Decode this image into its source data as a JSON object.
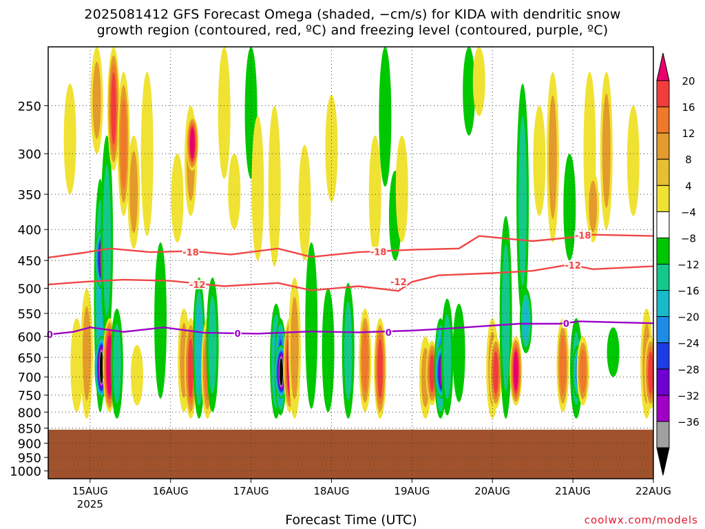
{
  "title_lines": [
    "2025081412 GFS Forecast Omega (shaded, −cm/s) for KIDA with dendritic snow",
    "growth region (contoured, red, ºC) and freezing level (contoured, purple, ºC)"
  ],
  "credit": "coolwx.com/models",
  "chart_data": {
    "type": "heatmap",
    "title": "2025081412 GFS Forecast Omega (shaded, −cm/s) for KIDA with dendritic snow growth region (contoured, red, ºC) and freezing level (contoured, purple, ºC)",
    "xlabel": "Forecast Time (UTC)",
    "ylabel": "",
    "x_ticks": [
      "15AUG",
      "16AUG",
      "17AUG",
      "18AUG",
      "19AUG",
      "20AUG",
      "21AUG",
      "22AUG"
    ],
    "x_tick_sub": "2025",
    "x_range_hours": [
      -12.5,
      168
    ],
    "y_ticks": [
      250,
      300,
      350,
      400,
      450,
      500,
      550,
      600,
      650,
      700,
      750,
      800,
      850,
      900,
      950,
      1000
    ],
    "y_range_hPa": [
      200,
      1030
    ],
    "y_scale": "log",
    "grid": true,
    "colorbar": {
      "labels": [
        "20",
        "16",
        "12",
        "8",
        "4",
        "−4",
        "−8",
        "−12",
        "−16",
        "−20",
        "−24",
        "−28",
        "−32",
        "−36"
      ],
      "colors": [
        "#e8006f",
        "#f23c3c",
        "#f0782a",
        "#e49a2c",
        "#e6c032",
        "#f0e232",
        "#ffffff",
        "#00c800",
        "#14c88c",
        "#18b9c8",
        "#1e8ce6",
        "#1e3ce6",
        "#6e00d2",
        "#a000c8",
        "#a0a0a0",
        "#000000"
      ]
    },
    "terrain": {
      "above_hPa": 855,
      "color": "#a0522d"
    },
    "contours": [
      {
        "label": "-18",
        "color": "#f04646",
        "points": [
          [
            -12.5,
            445
          ],
          [
            -2,
            437
          ],
          [
            6,
            430
          ],
          [
            18,
            436
          ],
          [
            30,
            434
          ],
          [
            42,
            440
          ],
          [
            56,
            430
          ],
          [
            66,
            444
          ],
          [
            80,
            436
          ],
          [
            96,
            432
          ],
          [
            110,
            430
          ],
          [
            116,
            410
          ],
          [
            132,
            418
          ],
          [
            144,
            412
          ],
          [
            150,
            408
          ],
          [
            168,
            410
          ]
        ]
      },
      {
        "label": "-12",
        "color": "#f04646",
        "points": [
          [
            -12.5,
            493
          ],
          [
            -2,
            488
          ],
          [
            10,
            484
          ],
          [
            24,
            486
          ],
          [
            40,
            496
          ],
          [
            56,
            490
          ],
          [
            66,
            504
          ],
          [
            80,
            496
          ],
          [
            92,
            505
          ],
          [
            96,
            488
          ],
          [
            104,
            476
          ],
          [
            120,
            472
          ],
          [
            132,
            468
          ],
          [
            143,
            457
          ],
          [
            150,
            465
          ],
          [
            168,
            460
          ]
        ]
      },
      {
        "label": "0",
        "color": "#9a00c8",
        "points": [
          [
            -12.5,
            596
          ],
          [
            -5,
            590
          ],
          [
            0,
            580
          ],
          [
            10,
            590
          ],
          [
            22,
            580
          ],
          [
            34,
            592
          ],
          [
            50,
            594
          ],
          [
            66,
            589
          ],
          [
            80,
            591
          ],
          [
            96,
            587
          ],
          [
            108,
            582
          ],
          [
            118,
            577
          ],
          [
            128,
            572
          ],
          [
            140,
            572
          ],
          [
            146,
            567
          ],
          [
            168,
            571
          ]
        ]
      }
    ],
    "contour_labels": [
      {
        "text": "-18",
        "x": 30,
        "y": 436
      },
      {
        "text": "-18",
        "x": 86,
        "y": 435
      },
      {
        "text": "-18",
        "x": 147,
        "y": 409
      },
      {
        "text": "-12",
        "x": 32,
        "y": 493
      },
      {
        "text": "-12",
        "x": 92,
        "y": 488
      },
      {
        "text": "-12",
        "x": 144,
        "y": 458
      },
      {
        "text": "0",
        "x": -12,
        "y": 596
      },
      {
        "text": "0",
        "x": 44,
        "y": 593
      },
      {
        "text": "0",
        "x": 89,
        "y": 591
      },
      {
        "text": "0",
        "x": 142,
        "y": 571
      }
    ],
    "omega_blobs": [
      {
        "t": -11.5,
        "p0": 320,
        "p1": 470,
        "v": 3
      },
      {
        "t": -6,
        "p0": 230,
        "p1": 350,
        "v": 4
      },
      {
        "t": -4,
        "p0": 560,
        "p1": 800,
        "v": 7
      },
      {
        "t": -1,
        "p0": 500,
        "p1": 820,
        "v": 11
      },
      {
        "t": 2,
        "p0": 200,
        "p1": 300,
        "v": 8
      },
      {
        "t": 3,
        "p0": 330,
        "p1": 800,
        "v": -12
      },
      {
        "t": 3.4,
        "p0": 400,
        "p1": 500,
        "v": -30
      },
      {
        "t": 3.4,
        "p0": 600,
        "p1": 760,
        "v": -36
      },
      {
        "t": 5,
        "p0": 280,
        "p1": 620,
        "v": -9
      },
      {
        "t": 5.8,
        "p0": 560,
        "p1": 800,
        "v": 22
      },
      {
        "t": 7,
        "p0": 200,
        "p1": 320,
        "v": 16
      },
      {
        "t": 8,
        "p0": 540,
        "p1": 820,
        "v": -8
      },
      {
        "t": 10,
        "p0": 220,
        "p1": 380,
        "v": 12
      },
      {
        "t": 13,
        "p0": 280,
        "p1": 430,
        "v": 9
      },
      {
        "t": 14,
        "p0": 620,
        "p1": 780,
        "v": 5
      },
      {
        "t": 17,
        "p0": 220,
        "p1": 410,
        "v": 4
      },
      {
        "t": 21,
        "p0": 420,
        "p1": 760,
        "v": -6
      },
      {
        "t": 26,
        "p0": 300,
        "p1": 420,
        "v": 4
      },
      {
        "t": 28,
        "p0": 540,
        "p1": 800,
        "v": 9
      },
      {
        "t": 30,
        "p0": 250,
        "p1": 380,
        "v": 10
      },
      {
        "t": 30,
        "p0": 560,
        "p1": 820,
        "v": 18
      },
      {
        "t": 30.5,
        "p0": 260,
        "p1": 320,
        "v": 20
      },
      {
        "t": 32.5,
        "p0": 480,
        "p1": 820,
        "v": -12
      },
      {
        "t": 35,
        "p0": 560,
        "p1": 820,
        "v": 14
      },
      {
        "t": 36.5,
        "p0": 480,
        "p1": 800,
        "v": -9
      },
      {
        "t": 40,
        "p0": 200,
        "p1": 330,
        "v": 4
      },
      {
        "t": 43,
        "p0": 300,
        "p1": 400,
        "v": 5
      },
      {
        "t": 48,
        "p0": 200,
        "p1": 330,
        "v": -6
      },
      {
        "t": 50,
        "p0": 260,
        "p1": 450,
        "v": 4
      },
      {
        "t": 55,
        "p0": 250,
        "p1": 460,
        "v": 6
      },
      {
        "t": 55.5,
        "p0": 530,
        "p1": 820,
        "v": -12
      },
      {
        "t": 56.8,
        "p0": 560,
        "p1": 810,
        "v": -20
      },
      {
        "t": 57,
        "p0": 620,
        "p1": 760,
        "v": -36
      },
      {
        "t": 59.5,
        "p0": 560,
        "p1": 800,
        "v": 20
      },
      {
        "t": 61,
        "p0": 480,
        "p1": 820,
        "v": 10
      },
      {
        "t": 64,
        "p0": 290,
        "p1": 450,
        "v": 4
      },
      {
        "t": 66,
        "p0": 420,
        "p1": 790,
        "v": -7
      },
      {
        "t": 71,
        "p0": 500,
        "p1": 800,
        "v": -6
      },
      {
        "t": 72,
        "p0": 240,
        "p1": 360,
        "v": 5
      },
      {
        "t": 77,
        "p0": 490,
        "p1": 820,
        "v": -8
      },
      {
        "t": 82,
        "p0": 540,
        "p1": 800,
        "v": 12
      },
      {
        "t": 85,
        "p0": 280,
        "p1": 440,
        "v": 5
      },
      {
        "t": 86.5,
        "p0": 560,
        "p1": 820,
        "v": 19
      },
      {
        "t": 88,
        "p0": 200,
        "p1": 340,
        "v": -7
      },
      {
        "t": 91,
        "p0": 320,
        "p1": 450,
        "v": -5
      },
      {
        "t": 93,
        "p0": 280,
        "p1": 420,
        "v": 4
      },
      {
        "t": 100,
        "p0": 600,
        "p1": 820,
        "v": 9
      },
      {
        "t": 102,
        "p0": 610,
        "p1": 780,
        "v": 16
      },
      {
        "t": 104.5,
        "p0": 560,
        "p1": 820,
        "v": -16
      },
      {
        "t": 104.8,
        "p0": 620,
        "p1": 760,
        "v": -28
      },
      {
        "t": 106.5,
        "p0": 520,
        "p1": 810,
        "v": -8
      },
      {
        "t": 110,
        "p0": 530,
        "p1": 770,
        "v": -6
      },
      {
        "t": 113,
        "p0": 200,
        "p1": 280,
        "v": -6
      },
      {
        "t": 116,
        "p0": 200,
        "p1": 260,
        "v": 4
      },
      {
        "t": 120,
        "p0": 560,
        "p1": 820,
        "v": 9
      },
      {
        "t": 121,
        "p0": 600,
        "p1": 790,
        "v": 18
      },
      {
        "t": 124,
        "p0": 380,
        "p1": 820,
        "v": -8
      },
      {
        "t": 127,
        "p0": 600,
        "p1": 780,
        "v": 20
      },
      {
        "t": 129,
        "p0": 230,
        "p1": 560,
        "v": -8
      },
      {
        "t": 130,
        "p0": 500,
        "p1": 640,
        "v": -13
      },
      {
        "t": 134,
        "p0": 250,
        "p1": 380,
        "v": 5
      },
      {
        "t": 138,
        "p0": 220,
        "p1": 420,
        "v": 8
      },
      {
        "t": 141,
        "p0": 560,
        "p1": 800,
        "v": 15
      },
      {
        "t": 143,
        "p0": 300,
        "p1": 450,
        "v": -7
      },
      {
        "t": 145,
        "p0": 560,
        "p1": 820,
        "v": -9
      },
      {
        "t": 145.6,
        "p0": 620,
        "p1": 760,
        "v": -17
      },
      {
        "t": 147,
        "p0": 600,
        "p1": 780,
        "v": 14
      },
      {
        "t": 149,
        "p0": 220,
        "p1": 400,
        "v": 5
      },
      {
        "t": 150,
        "p0": 320,
        "p1": 420,
        "v": 10
      },
      {
        "t": 154,
        "p0": 220,
        "p1": 400,
        "v": 11
      },
      {
        "t": 156,
        "p0": 580,
        "p1": 700,
        "v": -6
      },
      {
        "t": 162,
        "p0": 250,
        "p1": 380,
        "v": 4
      },
      {
        "t": 166,
        "p0": 540,
        "p1": 820,
        "v": 8
      },
      {
        "t": 167.2,
        "p0": 600,
        "p1": 790,
        "v": 16
      }
    ]
  }
}
